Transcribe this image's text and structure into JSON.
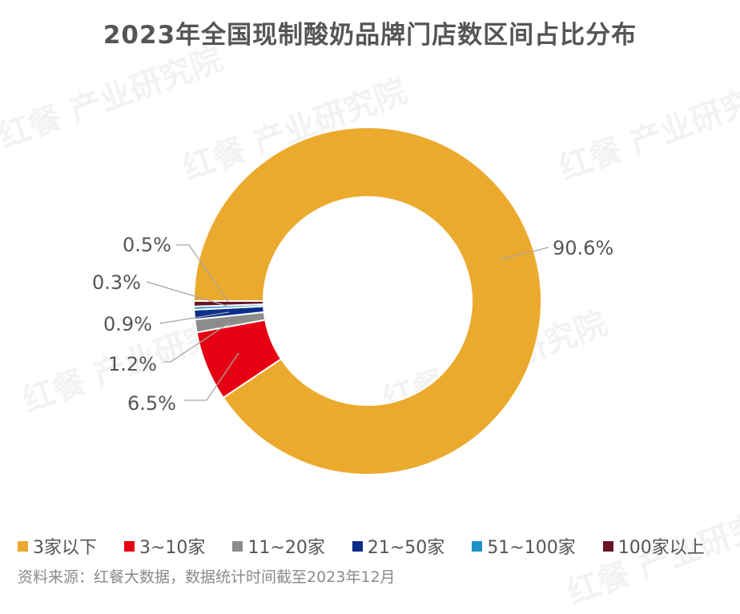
{
  "title": "2023年全国现制酸奶品牌门店数区间占比分布",
  "watermark": "红餐 产业研究院",
  "source": "资料来源：红餐大数据，数据统计时间截至2023年12月",
  "chart_data": {
    "type": "pie",
    "subtype": "donut",
    "title": "2023年全国现制酸奶品牌门店数区间占比分布",
    "categories": [
      "3家以下",
      "3~10家",
      "11~20家",
      "21~50家",
      "51~100家",
      "100家以上"
    ],
    "values": [
      90.6,
      6.5,
      1.2,
      0.9,
      0.3,
      0.5
    ],
    "unit": "%",
    "labels": [
      "90.6%",
      "6.5%",
      "1.2%",
      "0.9%",
      "0.3%",
      "0.5%"
    ],
    "colors": [
      "#EBAA2D",
      "#E60012",
      "#8C8C8C",
      "#0A2E8C",
      "#1E90C8",
      "#6B1428"
    ],
    "legend_position": "bottom"
  },
  "legend": [
    {
      "label": "3家以下",
      "color": "#EBAA2D"
    },
    {
      "label": "3~10家",
      "color": "#E60012"
    },
    {
      "label": "11~20家",
      "color": "#8C8C8C"
    },
    {
      "label": "21~50家",
      "color": "#0A2E8C"
    },
    {
      "label": "51~100家",
      "color": "#1E90C8"
    },
    {
      "label": "100家以上",
      "color": "#6B1428"
    }
  ]
}
